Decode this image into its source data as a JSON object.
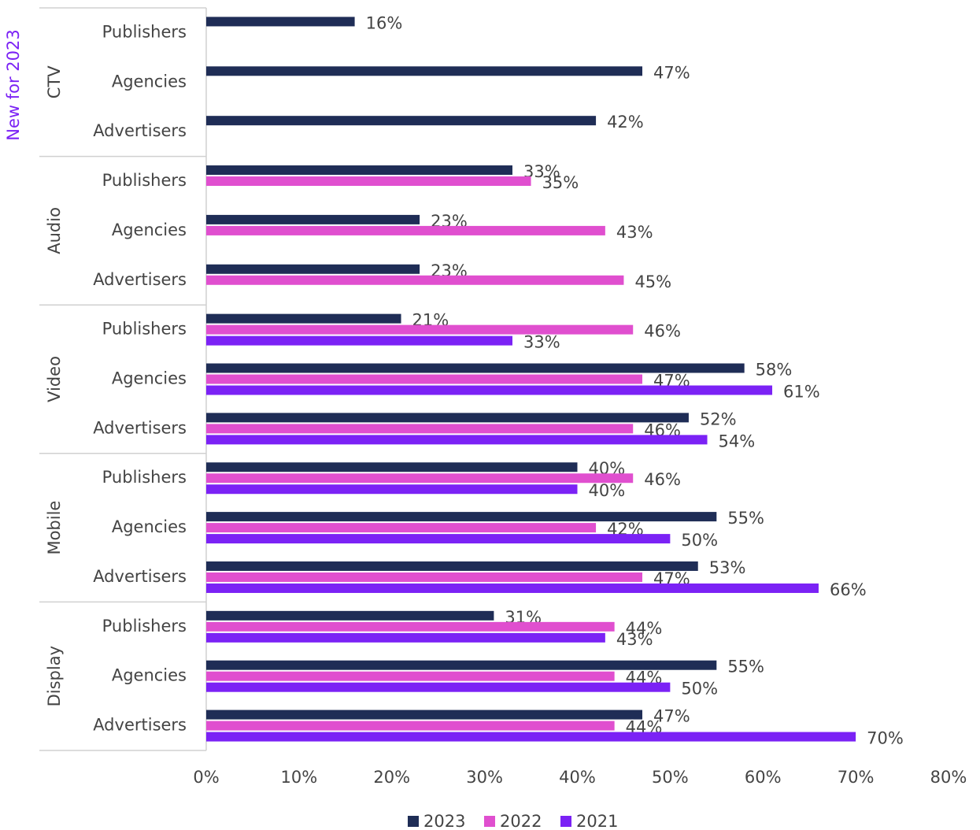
{
  "chart_data": {
    "type": "bar",
    "orientation": "horizontal",
    "annotation": "New for 2023",
    "groups": [
      "CTV",
      "Audio",
      "Video",
      "Mobile",
      "Display"
    ],
    "categories": [
      "Publishers",
      "Agencies",
      "Advertisers",
      "Publishers",
      "Agencies",
      "Advertisers",
      "Publishers",
      "Agencies",
      "Advertisers",
      "Publishers",
      "Agencies",
      "Advertisers",
      "Publishers",
      "Agencies",
      "Advertisers"
    ],
    "series": [
      {
        "name": "2023",
        "color": "#1f2d56",
        "values": [
          16,
          47,
          42,
          33,
          23,
          23,
          21,
          58,
          52,
          40,
          55,
          53,
          31,
          55,
          47
        ],
        "value_labels": [
          "16%",
          "47%",
          "42%",
          "33%",
          "23%",
          "23%",
          "21%",
          "58%",
          "52%",
          "40%",
          "55%",
          "53%",
          "31%",
          "55%",
          "47%"
        ]
      },
      {
        "name": "2022",
        "color": "#e04fcf",
        "values": [
          null,
          null,
          null,
          35,
          43,
          45,
          46,
          47,
          46,
          46,
          42,
          47,
          44,
          44,
          44
        ],
        "value_labels": [
          null,
          null,
          null,
          "35%",
          "43%",
          "45%",
          "46%",
          "47%",
          "46%",
          "46%",
          "42%",
          "47%",
          "44%",
          "44%",
          "44%"
        ]
      },
      {
        "name": "2021",
        "color": "#7b22f5",
        "values": [
          null,
          null,
          null,
          null,
          null,
          null,
          33,
          61,
          54,
          40,
          50,
          66,
          43,
          50,
          70
        ],
        "value_labels": [
          null,
          null,
          null,
          null,
          null,
          null,
          "33%",
          "61%",
          "54%",
          "40%",
          "50%",
          "66%",
          "43%",
          "50%",
          "70%"
        ]
      }
    ],
    "xlim": [
      0,
      80
    ],
    "xticks": [
      {
        "value": 0,
        "label": "0%"
      },
      {
        "value": 10,
        "label": "10%"
      },
      {
        "value": 20,
        "label": "20%"
      },
      {
        "value": 30,
        "label": "30%"
      },
      {
        "value": 40,
        "label": "40%"
      },
      {
        "value": 50,
        "label": "50%"
      },
      {
        "value": 60,
        "label": "60%"
      },
      {
        "value": 70,
        "label": "70%"
      },
      {
        "value": 80,
        "label": "80%"
      }
    ],
    "annotation_color": "#7b22f5",
    "legend": "bottom"
  }
}
